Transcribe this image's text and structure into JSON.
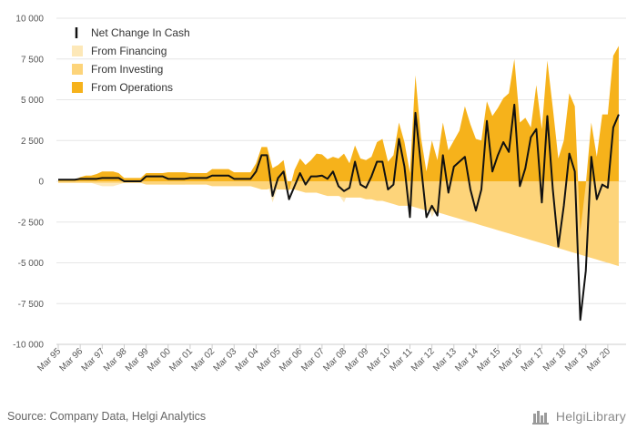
{
  "footer": {
    "source": "Source: Company Data, Helgi Analytics",
    "brand": "HelgiLibrary"
  },
  "colors": {
    "net": "#111111",
    "financing": "#fde8b8",
    "investing": "#fdd47a",
    "operations": "#f6b21b"
  },
  "chart_data": {
    "type": "area",
    "legend_placement": "top-left",
    "grid": true,
    "ylim": [
      -10000,
      10000
    ],
    "yticks": [
      "10 000",
      "7 500",
      "5 000",
      "2 500",
      "0",
      "-2 500",
      "-5 000",
      "-7 500",
      "-10 000"
    ],
    "ytick_values": [
      10000,
      7500,
      5000,
      2500,
      0,
      -2500,
      -5000,
      -7500,
      -10000
    ],
    "xticks": [
      "Mar 95",
      "Mar 96",
      "Mar 97",
      "Mar 98",
      "Mar 99",
      "Mar 00",
      "Mar 01",
      "Mar 02",
      "Mar 03",
      "Mar 04",
      "Mar 05",
      "Mar 06",
      "Mar 07",
      "Mar 08",
      "Mar 09",
      "Mar 10",
      "Mar 11",
      "Mar 12",
      "Mar 13",
      "Mar 14",
      "Mar 15",
      "Mar 16",
      "Mar 17",
      "Mar 18",
      "Mar 19",
      "Mar 20"
    ],
    "quarters_per_tick": 4,
    "series": [
      {
        "name": "Net Change In Cash",
        "key": "net",
        "values": [
          100,
          100,
          100,
          100,
          150,
          150,
          150,
          150,
          200,
          200,
          200,
          200,
          0,
          0,
          0,
          0,
          300,
          300,
          300,
          300,
          150,
          150,
          150,
          150,
          200,
          200,
          200,
          200,
          350,
          350,
          350,
          350,
          150,
          150,
          150,
          150,
          600,
          1600,
          1600,
          -900,
          200,
          600,
          -1100,
          -300,
          500,
          -200,
          300,
          300,
          350,
          150,
          600,
          -300,
          -600,
          -400,
          1200,
          -200,
          -400,
          300,
          1200,
          1200,
          -500,
          -200,
          2600,
          900,
          -2200,
          4200,
          1000,
          -2200,
          -1500,
          -2100,
          1600,
          -700,
          900,
          1200,
          1500,
          -500,
          -1800,
          -500,
          3700,
          600,
          1600,
          2400,
          1800,
          4700,
          -300,
          800,
          2700,
          3200,
          -1300,
          4000,
          -500,
          -4000,
          -1500,
          1700,
          600,
          -8500,
          -5500,
          1500,
          -1100,
          -200,
          -400,
          3300,
          4100
        ]
      },
      {
        "name": "From Financing",
        "key": "financing",
        "values": [
          100,
          100,
          100,
          100,
          0,
          -100,
          -100,
          -200,
          -300,
          -300,
          -300,
          -200,
          -100,
          -100,
          -100,
          -100,
          0,
          0,
          0,
          0,
          -200,
          -200,
          -200,
          -200,
          -100,
          -100,
          -100,
          -100,
          -100,
          -100,
          -100,
          -100,
          -100,
          -100,
          -100,
          -100,
          -100,
          0,
          0,
          -1300,
          -300,
          -200,
          0,
          -500,
          -300,
          -500,
          -300,
          -700,
          -500,
          -300,
          0,
          -800,
          -1300,
          -500,
          0,
          -500,
          -600,
          0,
          0,
          0,
          -500,
          -400,
          500,
          0,
          -1200,
          -700,
          0,
          -1000,
          -2200,
          -1500,
          0,
          -500,
          600,
          400,
          -700,
          -1500,
          -1800,
          -300,
          1600,
          -500,
          100,
          400,
          -400,
          500,
          -500,
          -1200,
          3000,
          1000,
          -700,
          500,
          -1000,
          -1000,
          -1000,
          600,
          400,
          -1200,
          -800,
          -1000,
          -1200,
          1000,
          500,
          800,
          1000
        ]
      },
      {
        "name": "From Investing",
        "key": "investing",
        "values": [
          -100,
          -100,
          -100,
          -100,
          -100,
          -100,
          -100,
          -100,
          -100,
          -100,
          -100,
          -100,
          -100,
          -100,
          -100,
          -100,
          -200,
          -200,
          -200,
          -200,
          -200,
          -200,
          -200,
          -200,
          -200,
          -200,
          -200,
          -200,
          -300,
          -300,
          -300,
          -300,
          -300,
          -300,
          -300,
          -300,
          -400,
          -500,
          -500,
          -400,
          -500,
          -500,
          -500,
          -500,
          -600,
          -700,
          -700,
          -700,
          -800,
          -900,
          -900,
          -900,
          -1000,
          -1000,
          -1000,
          -1000,
          -1100,
          -1100,
          -1200,
          -1200,
          -1300,
          -1400,
          -1500,
          -1500,
          -1500,
          -1600,
          -1700,
          -1800,
          -1800,
          -1900,
          -2000,
          -2100,
          -2200,
          -2300,
          -2400,
          -2500,
          -2600,
          -2700,
          -2800,
          -2900,
          -3000,
          -3100,
          -3200,
          -3300,
          -3400,
          -3500,
          -3600,
          -3700,
          -3800,
          -3900,
          -4000,
          -4100,
          -4200,
          -4300,
          -4400,
          -4500,
          -4600,
          -4700,
          -4800,
          -4900,
          -5000,
          -5100,
          -5200
        ]
      },
      {
        "name": "From Operations",
        "key": "operations",
        "values": [
          100,
          100,
          100,
          100,
          250,
          350,
          350,
          450,
          600,
          600,
          600,
          500,
          200,
          200,
          200,
          200,
          500,
          500,
          500,
          500,
          550,
          550,
          550,
          550,
          500,
          500,
          500,
          500,
          750,
          750,
          750,
          750,
          550,
          550,
          550,
          550,
          1100,
          2100,
          2100,
          800,
          1000,
          1300,
          -600,
          700,
          1400,
          1000,
          1300,
          1700,
          1650,
          1350,
          1500,
          1400,
          1700,
          1100,
          2200,
          1400,
          1300,
          1500,
          2400,
          2600,
          1200,
          1600,
          3600,
          2400,
          500,
          6500,
          2700,
          600,
          2500,
          1300,
          3600,
          1900,
          2500,
          3100,
          4600,
          3500,
          2600,
          2500,
          4900,
          4000,
          4500,
          5100,
          5400,
          7500,
          3600,
          3900,
          3300,
          5900,
          3200,
          7400,
          4500,
          1400,
          2500,
          5400,
          4600,
          -3100,
          -200,
          3600,
          1500,
          4100,
          4100,
          7700,
          8300
        ]
      }
    ]
  }
}
